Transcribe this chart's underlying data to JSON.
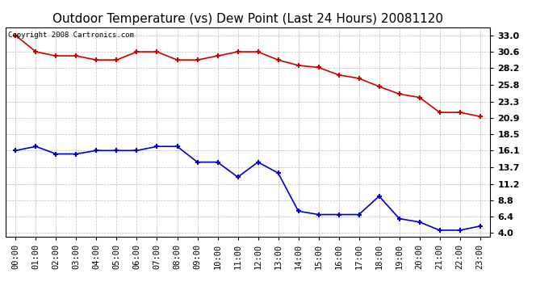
{
  "title": "Outdoor Temperature (vs) Dew Point (Last 24 Hours) 20081120",
  "copyright_text": "Copyright 2008 Cartronics.com",
  "x_labels": [
    "00:00",
    "01:00",
    "02:00",
    "03:00",
    "04:00",
    "05:00",
    "06:00",
    "07:00",
    "08:00",
    "09:00",
    "10:00",
    "11:00",
    "12:00",
    "13:00",
    "14:00",
    "15:00",
    "16:00",
    "17:00",
    "18:00",
    "19:00",
    "20:00",
    "21:00",
    "22:00",
    "23:00"
  ],
  "temp_values": [
    33.0,
    30.6,
    30.0,
    30.0,
    29.4,
    29.4,
    30.6,
    30.6,
    29.4,
    29.4,
    30.0,
    30.6,
    30.6,
    29.4,
    28.6,
    28.3,
    27.2,
    26.7,
    25.5,
    24.4,
    23.9,
    21.7,
    21.7,
    21.1
  ],
  "dew_values": [
    16.1,
    16.7,
    15.6,
    15.6,
    16.1,
    16.1,
    16.1,
    16.7,
    16.7,
    14.4,
    14.4,
    12.2,
    14.4,
    12.8,
    7.2,
    6.7,
    6.7,
    6.7,
    9.4,
    6.1,
    5.6,
    4.4,
    4.4,
    5.0
  ],
  "temp_color": "#cc0000",
  "dew_color": "#0000cc",
  "yticks": [
    4.0,
    6.4,
    8.8,
    11.2,
    13.7,
    16.1,
    18.5,
    20.9,
    23.3,
    25.8,
    28.2,
    30.6,
    33.0
  ],
  "ylim": [
    3.5,
    34.2
  ],
  "bg_color": "#ffffff",
  "grid_color": "#bbbbbb",
  "title_fontsize": 11,
  "tick_fontsize": 7.5,
  "ytick_fontsize": 8,
  "marker": "+",
  "linewidth": 1.2,
  "markersize": 5,
  "markeredgewidth": 1.5
}
